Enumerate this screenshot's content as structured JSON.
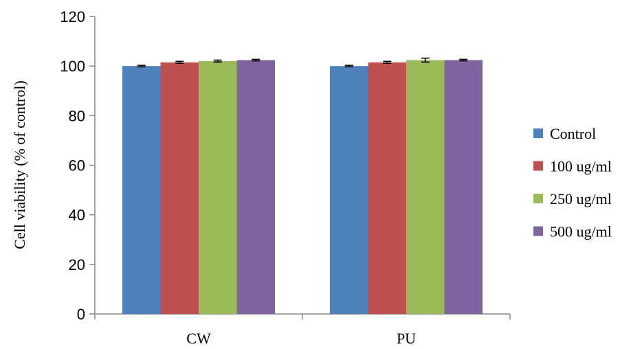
{
  "chart_data": {
    "type": "bar",
    "title": "",
    "xlabel": "",
    "ylabel": "Cell viability  (% of control)",
    "ylim": [
      0,
      120
    ],
    "yticks": [
      0,
      20,
      40,
      60,
      80,
      100,
      120
    ],
    "grid": false,
    "legend_position": "right",
    "categories": [
      "CW",
      "PU"
    ],
    "series": [
      {
        "name": "Control",
        "color": "#4F81BD",
        "values": [
          100.0,
          100.0
        ],
        "errors": [
          0.3,
          0.3
        ]
      },
      {
        "name": "100 ug/ml",
        "color": "#C0504D",
        "values": [
          101.5,
          101.5
        ],
        "errors": [
          0.4,
          0.4
        ]
      },
      {
        "name": "250 ug/ml",
        "color": "#9BBB59",
        "values": [
          102.0,
          102.4
        ],
        "errors": [
          0.4,
          0.8
        ]
      },
      {
        "name": "500 ug/ml",
        "color": "#8064A2",
        "values": [
          102.4,
          102.4
        ],
        "errors": [
          0.3,
          0.3
        ]
      }
    ]
  }
}
